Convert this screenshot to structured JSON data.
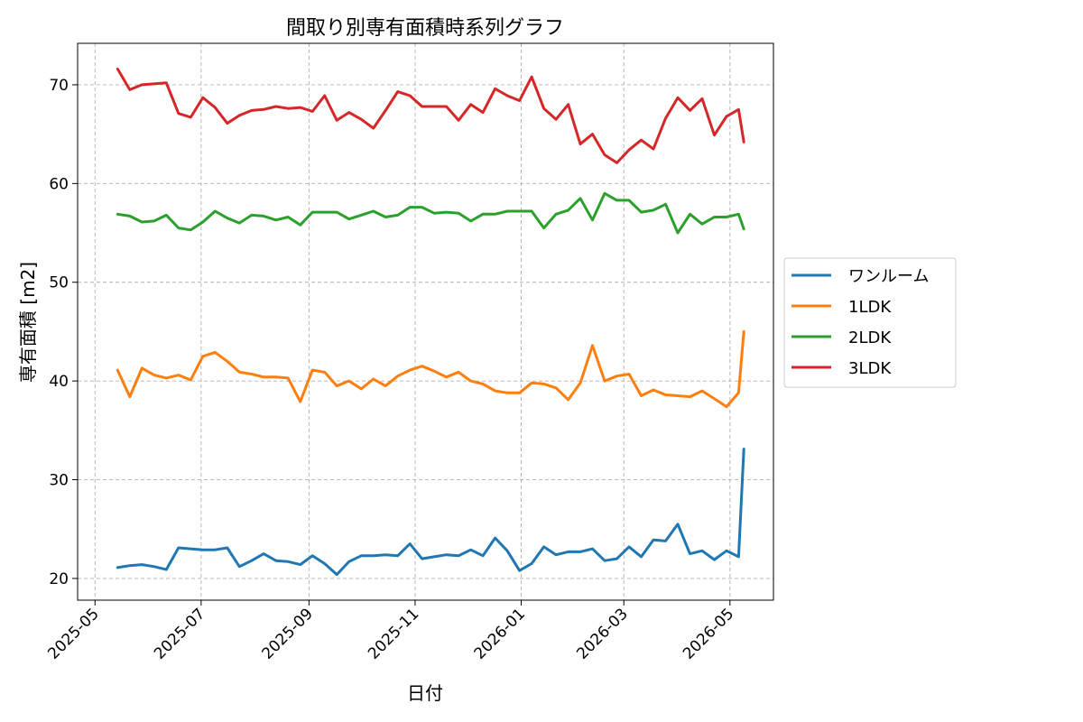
{
  "chart_data": {
    "type": "line",
    "title": "間取り別専有面積時系列グラフ",
    "xlabel": "日付",
    "ylabel": "専有面積 [m2]",
    "x_tick_labels": [
      "2025-05",
      "2025-07",
      "2025-09",
      "2025-11",
      "2026-01",
      "2026-03",
      "2026-05"
    ],
    "x_tick_dates": [
      "2025-05-01",
      "2025-07-01",
      "2025-09-01",
      "2025-11-01",
      "2026-01-01",
      "2026-03-01",
      "2026-05-01"
    ],
    "xlim": [
      "2025-04-21",
      "2026-05-26"
    ],
    "y_ticks": [
      20,
      30,
      40,
      50,
      60,
      70
    ],
    "ylim": [
      17.8,
      74.2
    ],
    "grid": true,
    "legend_position": "right, outside plot",
    "x": [
      "2025-05-14",
      "2025-05-21",
      "2025-05-28",
      "2025-06-04",
      "2025-06-11",
      "2025-06-18",
      "2025-06-25",
      "2025-07-02",
      "2025-07-09",
      "2025-07-16",
      "2025-07-23",
      "2025-07-30",
      "2025-08-06",
      "2025-08-13",
      "2025-08-20",
      "2025-08-27",
      "2025-09-03",
      "2025-09-10",
      "2025-09-17",
      "2025-09-24",
      "2025-10-01",
      "2025-10-08",
      "2025-10-15",
      "2025-10-22",
      "2025-10-29",
      "2025-11-05",
      "2025-11-12",
      "2025-11-19",
      "2025-11-26",
      "2025-12-03",
      "2025-12-10",
      "2025-12-17",
      "2025-12-24",
      "2025-12-31",
      "2026-01-07",
      "2026-01-14",
      "2026-01-21",
      "2026-01-28",
      "2026-02-04",
      "2026-02-11",
      "2026-02-18",
      "2026-02-25",
      "2026-03-04",
      "2026-03-11",
      "2026-03-18",
      "2026-03-25",
      "2026-04-01",
      "2026-04-08",
      "2026-04-15",
      "2026-04-22",
      "2026-04-29",
      "2026-05-06",
      "2026-05-09"
    ],
    "series": [
      {
        "name": "ワンルーム",
        "color": "#1f77b4",
        "values": [
          21.1,
          21.3,
          21.4,
          21.2,
          20.9,
          23.1,
          23.0,
          22.9,
          22.9,
          23.1,
          21.2,
          21.8,
          22.5,
          21.8,
          21.7,
          21.4,
          22.3,
          21.5,
          20.4,
          21.7,
          22.3,
          22.3,
          22.4,
          22.3,
          23.5,
          22.0,
          22.2,
          22.4,
          22.3,
          22.9,
          22.3,
          24.1,
          22.8,
          20.8,
          21.5,
          23.2,
          22.4,
          22.7,
          22.7,
          23.0,
          21.8,
          22.0,
          23.2,
          22.2,
          23.9,
          23.8,
          25.5,
          22.5,
          22.8,
          21.9,
          22.8,
          22.2,
          33.1
        ]
      },
      {
        "name": "1LDK",
        "color": "#ff7f0e",
        "values": [
          41.1,
          38.4,
          41.3,
          40.6,
          40.3,
          40.6,
          40.1,
          42.5,
          42.9,
          42.0,
          40.9,
          40.7,
          40.4,
          40.4,
          40.3,
          37.9,
          41.1,
          40.9,
          39.5,
          40.0,
          39.2,
          40.2,
          39.5,
          40.5,
          41.1,
          41.5,
          41.0,
          40.4,
          40.9,
          40.0,
          39.7,
          39.0,
          38.8,
          38.8,
          39.8,
          39.7,
          39.3,
          38.1,
          39.8,
          43.6,
          40.0,
          40.5,
          40.7,
          38.5,
          39.1,
          38.6,
          38.5,
          38.4,
          39.0,
          38.2,
          37.4,
          38.8,
          45.0
        ]
      },
      {
        "name": "2LDK",
        "color": "#2ca02c",
        "values": [
          56.9,
          56.7,
          56.1,
          56.2,
          56.8,
          55.5,
          55.3,
          56.1,
          57.2,
          56.5,
          56.0,
          56.8,
          56.7,
          56.3,
          56.6,
          55.8,
          57.1,
          57.1,
          57.1,
          56.4,
          56.8,
          57.2,
          56.6,
          56.8,
          57.6,
          57.6,
          57.0,
          57.1,
          57.0,
          56.2,
          56.9,
          56.9,
          57.2,
          57.2,
          57.2,
          55.5,
          56.9,
          57.3,
          58.5,
          56.3,
          59.0,
          58.3,
          58.3,
          57.1,
          57.3,
          57.9,
          55.0,
          56.9,
          55.9,
          56.6,
          56.6,
          56.9,
          55.4
        ]
      },
      {
        "name": "3LDK",
        "color": "#d62728",
        "values": [
          71.6,
          69.5,
          70.0,
          70.1,
          70.2,
          67.1,
          66.7,
          68.7,
          67.7,
          66.1,
          66.9,
          67.4,
          67.5,
          67.8,
          67.6,
          67.7,
          67.3,
          68.9,
          66.4,
          67.2,
          66.5,
          65.6,
          67.4,
          69.3,
          68.9,
          67.8,
          67.8,
          67.8,
          66.4,
          68.0,
          67.2,
          69.6,
          68.9,
          68.4,
          70.8,
          67.6,
          66.5,
          68.0,
          64.0,
          65.0,
          62.9,
          62.1,
          63.4,
          64.4,
          63.5,
          66.6,
          68.7,
          67.4,
          68.6,
          64.9,
          66.8,
          67.5,
          64.2
        ]
      }
    ]
  }
}
